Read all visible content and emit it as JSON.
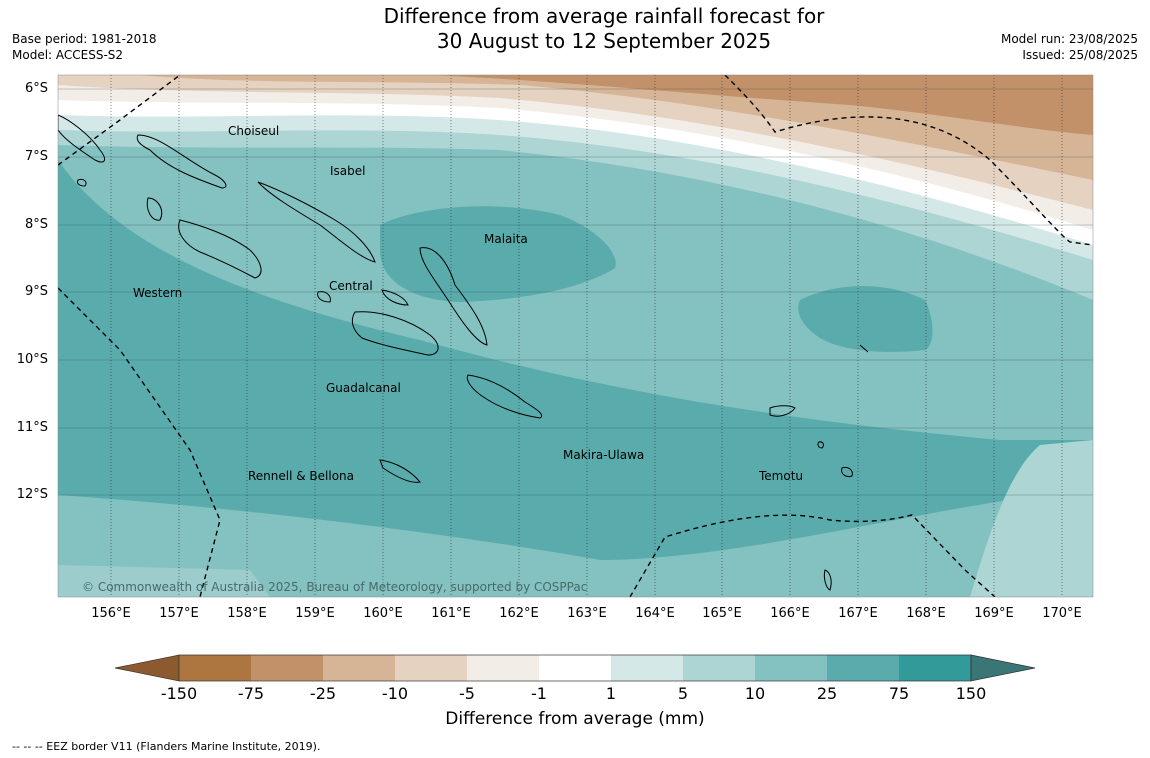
{
  "title_line1": "Difference from average rainfall forecast for",
  "title_line2": "30 August to 12 September 2025",
  "base_period": "Base period: 1981-2018",
  "model": "Model: ACCESS-S2",
  "model_run": "Model run: 23/08/2025",
  "issued": "Issued: 25/08/2025",
  "copyright": "© Commonwealth of Australia 2025, Bureau of Meteorology, supported by COSPPac",
  "lat_labels": [
    "6°S",
    "7°S",
    "8°S",
    "9°S",
    "10°S",
    "11°S",
    "12°S"
  ],
  "lon_labels": [
    "156°E",
    "157°E",
    "158°E",
    "159°E",
    "160°E",
    "161°E",
    "162°E",
    "163°E",
    "164°E",
    "165°E",
    "166°E",
    "167°E",
    "168°E",
    "169°E",
    "170°E"
  ],
  "places": [
    "Choiseul",
    "Isabel",
    "Malaita",
    "Western",
    "Central",
    "Guadalcanal",
    "Makira-Ulawa",
    "Rennell & Bellona",
    "Temotu"
  ],
  "legend": {
    "title": "Difference from average (mm)",
    "ticks": [
      "-150",
      "-75",
      "-25",
      "-10",
      "-5",
      "-1",
      "1",
      "5",
      "10",
      "25",
      "75",
      "150"
    ],
    "colors": [
      "#8c5a2e",
      "#ad7540",
      "#c2916a",
      "#d6b496",
      "#e5d2c1",
      "#f3ede8",
      "#ffffff",
      "#d5e8e8",
      "#acd5d4",
      "#84c1c1",
      "#5aacac",
      "#339a9a",
      "#3b7676"
    ]
  },
  "footnote": "--  --  -- EEZ border V11 (Flanders Marine Institute, 2019)."
}
